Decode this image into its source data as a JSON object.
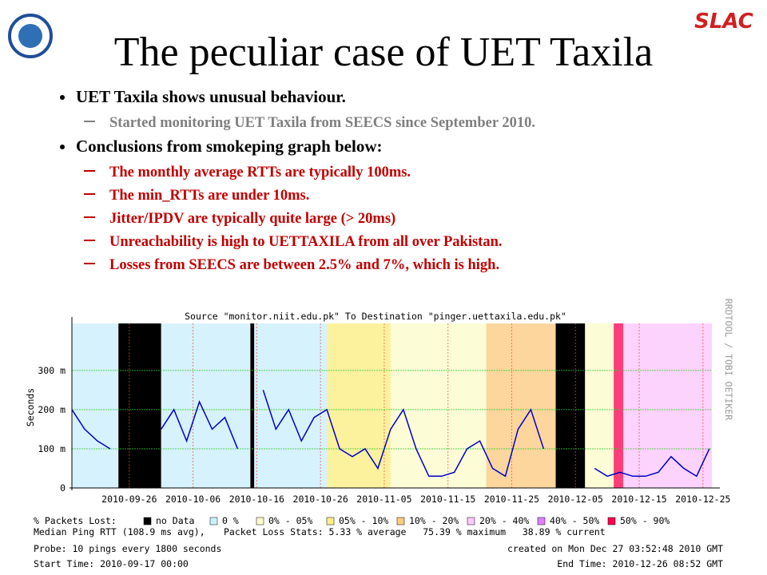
{
  "header": {
    "title": "The peculiar case of UET Taxila",
    "logo": "SLAC"
  },
  "bullets": [
    {
      "text": "UET Taxila shows unusual behaviour.",
      "sub_color": "#7f7f7f",
      "subs": [
        "Started monitoring UET Taxila from SEECS since September 2010."
      ]
    },
    {
      "text": "Conclusions from smokeping graph below:",
      "sub_color": "#c00000",
      "subs": [
        "The monthly average RTTs are typically 100ms.",
        "The min_RTTs are under 10ms.",
        "Jitter/IPDV are typically quite large (> 20ms)",
        "Unreachability is high to UETTAXILA from all over Pakistan.",
        "Losses from SEECS are between 2.5% and 7%, which is high."
      ]
    }
  ],
  "chart_data": {
    "type": "line",
    "title": "Source \"monitor.niit.edu.pk\" To Destination \"pinger.uettaxila.edu.pk\"",
    "side_label": "RRDTOOL / TOBI OETIKER",
    "ylabel": "Seconds",
    "xlim": [
      0,
      100.4
    ],
    "ylim": [
      0,
      0.42
    ],
    "xticks": [
      {
        "value": 9,
        "label": "2010-09-26"
      },
      {
        "value": 19,
        "label": "2010-10-06"
      },
      {
        "value": 29,
        "label": "2010-10-16"
      },
      {
        "value": 39,
        "label": "2010-10-26"
      },
      {
        "value": 49,
        "label": "2010-11-05"
      },
      {
        "value": 59,
        "label": "2010-11-15"
      },
      {
        "value": 69,
        "label": "2010-11-25"
      },
      {
        "value": 79,
        "label": "2010-12-05"
      },
      {
        "value": 89,
        "label": "2010-12-15"
      },
      {
        "value": 99,
        "label": "2010-12-25"
      }
    ],
    "yticks": [
      0,
      {
        "value": 0.1,
        "label": "100 m"
      },
      {
        "value": 0.2,
        "label": "200 m"
      },
      {
        "value": 0.3,
        "label": "300 m"
      }
    ],
    "grid": true,
    "x": [
      0,
      2,
      4,
      6,
      8,
      10,
      12,
      14,
      16,
      18,
      20,
      22,
      24,
      26,
      28,
      30,
      32,
      34,
      36,
      38,
      40,
      42,
      44,
      46,
      48,
      50,
      52,
      54,
      56,
      58,
      60,
      62,
      64,
      66,
      68,
      70,
      72,
      74,
      76,
      78,
      80,
      82,
      84,
      86,
      88,
      90,
      92,
      94,
      96,
      98,
      100
    ],
    "series": [
      {
        "name": "Median Ping RTT (108.9 ms avg),",
        "color": "#0000cc",
        "values": [
          0.2,
          0.15,
          0.12,
          0.1,
          null,
          null,
          null,
          0.15,
          0.2,
          0.12,
          0.22,
          0.15,
          0.18,
          0.1,
          null,
          0.25,
          0.15,
          0.2,
          0.12,
          0.18,
          0.2,
          0.1,
          0.08,
          0.1,
          0.05,
          0.15,
          0.2,
          0.1,
          0.03,
          0.03,
          0.04,
          0.1,
          0.12,
          0.05,
          0.03,
          0.15,
          0.2,
          0.1,
          null,
          null,
          null,
          0.05,
          0.03,
          0.04,
          0.03,
          0.03,
          0.04,
          0.08,
          0.05,
          0.03,
          0.1
        ]
      }
    ],
    "legend_title": "% Packets Lost:",
    "legend": [
      {
        "name": "no Data",
        "color": "#000000"
      },
      {
        "name": "0 %",
        "color": "#ccf2ff"
      },
      {
        "name": "0% - 05%",
        "color": "#ffffcc"
      },
      {
        "name": "05% - 10%",
        "color": "#fff080"
      },
      {
        "name": "10% - 20%",
        "color": "#ffcc80"
      },
      {
        "name": "20% - 40%",
        "color": "#ffc8ff"
      },
      {
        "name": "40% - 50%",
        "color": "#e080ff"
      },
      {
        "name": "50% - 90%",
        "color": "#ff0050"
      }
    ],
    "loss_bands": [
      {
        "x": [
          0,
          7.3
        ],
        "level": 1
      },
      {
        "x": [
          7.3,
          14
        ],
        "level": 0
      },
      {
        "x": [
          14,
          28
        ],
        "level": 1
      },
      {
        "x": [
          28,
          28.6
        ],
        "level": 0
      },
      {
        "x": [
          28.6,
          40
        ],
        "level": 1
      },
      {
        "x": [
          40,
          50
        ],
        "level": 3
      },
      {
        "x": [
          50,
          65
        ],
        "level": 2
      },
      {
        "x": [
          65,
          75.9
        ],
        "level": 4
      },
      {
        "x": [
          75.9,
          80.5
        ],
        "level": 0
      },
      {
        "x": [
          80.5,
          85
        ],
        "level": 2
      },
      {
        "x": [
          85,
          86.5
        ],
        "level": 7
      },
      {
        "x": [
          86.5,
          100.4
        ],
        "level": 5
      }
    ],
    "footer": {
      "stats": "Packet Loss Stats: 5.33 % average   75.39 % maximum   38.89 % current",
      "probe": "Probe: 10 pings every 1800 seconds",
      "created": "created on Mon Dec 27 03:52:48 2010 GMT",
      "start": "Start Time: 2010-09-17 00:00",
      "end": "End Time: 2010-12-26 08:52 GMT"
    }
  }
}
